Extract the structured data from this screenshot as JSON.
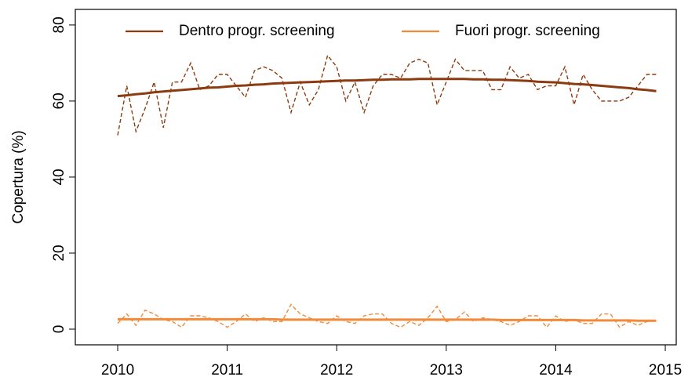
{
  "chart_data": {
    "type": "line",
    "ylabel": "Copertura (%)",
    "x": [
      2010,
      2010.083,
      2010.167,
      2010.25,
      2010.333,
      2010.417,
      2010.5,
      2010.583,
      2010.667,
      2010.75,
      2010.833,
      2010.917,
      2011,
      2011.083,
      2011.167,
      2011.25,
      2011.333,
      2011.417,
      2011.5,
      2011.583,
      2011.667,
      2011.75,
      2011.833,
      2011.917,
      2012,
      2012.083,
      2012.167,
      2012.25,
      2012.333,
      2012.417,
      2012.5,
      2012.583,
      2012.667,
      2012.75,
      2012.833,
      2012.917,
      2013,
      2013.083,
      2013.167,
      2013.25,
      2013.333,
      2013.417,
      2013.5,
      2013.583,
      2013.667,
      2013.75,
      2013.833,
      2013.917,
      2014,
      2014.083,
      2014.167,
      2014.25,
      2014.333,
      2014.417,
      2014.5,
      2014.583,
      2014.667,
      2014.75,
      2014.833,
      2014.917
    ],
    "series": [
      {
        "name": "Dentro progr. screening",
        "color": "#8c3b10",
        "values": [
          61.3,
          61.5,
          61.8,
          62.0,
          62.3,
          62.5,
          62.7,
          62.9,
          63.1,
          63.3,
          63.5,
          63.6,
          63.8,
          64.0,
          64.1,
          64.3,
          64.4,
          64.6,
          64.7,
          64.8,
          64.9,
          65.0,
          65.1,
          65.2,
          65.3,
          65.4,
          65.4,
          65.5,
          65.6,
          65.6,
          65.7,
          65.7,
          65.7,
          65.8,
          65.8,
          65.8,
          65.8,
          65.8,
          65.8,
          65.7,
          65.7,
          65.6,
          65.6,
          65.5,
          65.4,
          65.3,
          65.1,
          65.0,
          64.9,
          64.7,
          64.5,
          64.4,
          64.2,
          64.0,
          63.8,
          63.6,
          63.4,
          63.1,
          62.9,
          62.6
        ],
        "observed": [
          51,
          64,
          52,
          58,
          65,
          53,
          65,
          65,
          70,
          63,
          64,
          67,
          67,
          64,
          61,
          68,
          69,
          68,
          66,
          57,
          65,
          59,
          63,
          72,
          69,
          60,
          65,
          57,
          64,
          67,
          67,
          66,
          70,
          71,
          70,
          59,
          65,
          71,
          68,
          68,
          68,
          63,
          63,
          69,
          66,
          67,
          63,
          64,
          64,
          69,
          59,
          67,
          63,
          60,
          60,
          60,
          61,
          64,
          67,
          67
        ]
      },
      {
        "name": "Fuori progr. screening",
        "color": "#f28a3a",
        "values": [
          2.6,
          2.6,
          2.6,
          2.6,
          2.6,
          2.6,
          2.6,
          2.6,
          2.6,
          2.6,
          2.6,
          2.6,
          2.6,
          2.6,
          2.6,
          2.6,
          2.6,
          2.6,
          2.5,
          2.5,
          2.5,
          2.5,
          2.5,
          2.5,
          2.5,
          2.5,
          2.5,
          2.5,
          2.5,
          2.5,
          2.5,
          2.5,
          2.5,
          2.5,
          2.5,
          2.5,
          2.5,
          2.5,
          2.5,
          2.5,
          2.5,
          2.5,
          2.4,
          2.4,
          2.4,
          2.4,
          2.4,
          2.4,
          2.4,
          2.4,
          2.4,
          2.3,
          2.3,
          2.3,
          2.3,
          2.3,
          2.3,
          2.2,
          2.2,
          2.2
        ],
        "observed": [
          1.5,
          4,
          1,
          5,
          4,
          2.5,
          2,
          0.5,
          3.5,
          3.5,
          3,
          2,
          0.5,
          2,
          4,
          2,
          3,
          2,
          2,
          6.5,
          4,
          3,
          2,
          1.5,
          3.5,
          2,
          1.5,
          3.5,
          4,
          4,
          1.5,
          0.5,
          2,
          1,
          3,
          6,
          2,
          2.5,
          4.5,
          2,
          3,
          2.5,
          2,
          1,
          2,
          3.5,
          3.5,
          0.5,
          3.5,
          2,
          2.5,
          1.5,
          1.5,
          4,
          4,
          0.5,
          2,
          1,
          2,
          2.5
        ]
      }
    ],
    "xlim": [
      2009.613,
      2015.1
    ],
    "xticks": [
      2010,
      2011,
      2012,
      2013,
      2014,
      2015
    ],
    "ylim": [
      -4.12,
      84.1
    ],
    "yticks": [
      0,
      20,
      40,
      60,
      80
    ]
  }
}
